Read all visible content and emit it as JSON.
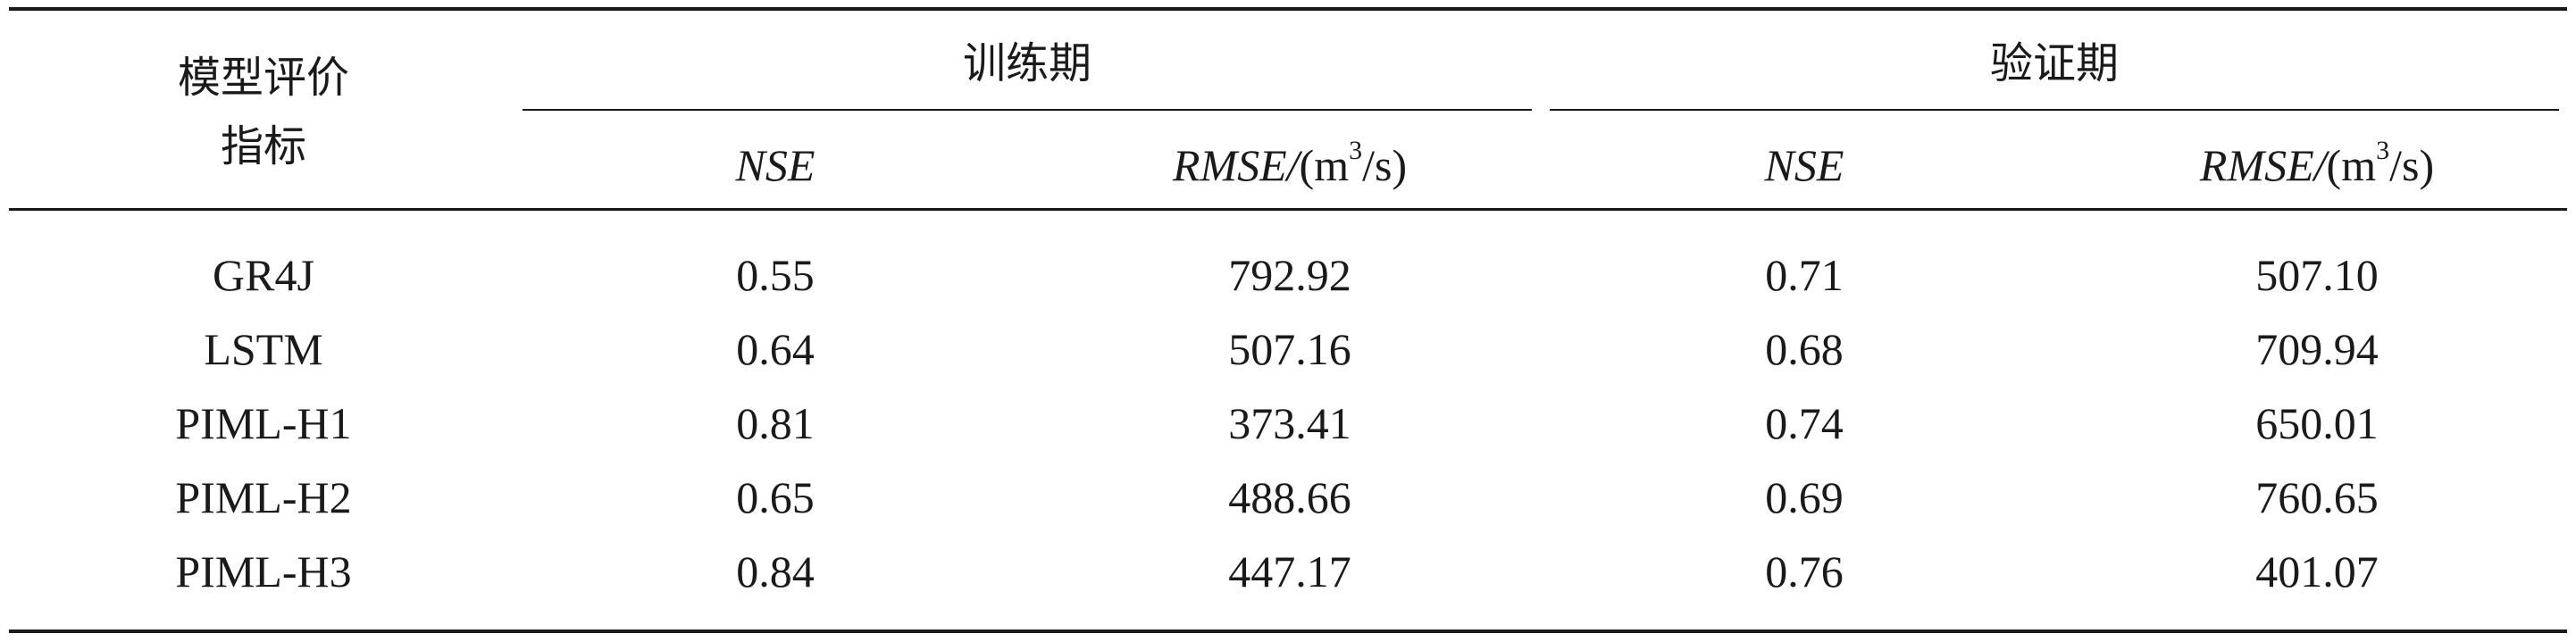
{
  "table": {
    "header": {
      "row_label_line1": "模型评价",
      "row_label_line2": "指标",
      "group_train": "训练期",
      "group_valid": "验证期",
      "nse_label": "NSE",
      "rmse_label": "RMSE/",
      "rmse_unit_open": "(m",
      "rmse_unit_exp": "3",
      "rmse_unit_close": "/s)"
    },
    "rows": [
      {
        "model": "GR4J",
        "train_nse": "0.55",
        "train_rmse": "792.92",
        "valid_nse": "0.71",
        "valid_rmse": "507.10"
      },
      {
        "model": "LSTM",
        "train_nse": "0.64",
        "train_rmse": "507.16",
        "valid_nse": "0.68",
        "valid_rmse": "709.94"
      },
      {
        "model": "PIML-H1",
        "train_nse": "0.81",
        "train_rmse": "373.41",
        "valid_nse": "0.74",
        "valid_rmse": "650.01"
      },
      {
        "model": "PIML-H2",
        "train_nse": "0.65",
        "train_rmse": "488.66",
        "valid_nse": "0.69",
        "valid_rmse": "760.65"
      },
      {
        "model": "PIML-H3",
        "train_nse": "0.84",
        "train_rmse": "447.17",
        "valid_nse": "0.76",
        "valid_rmse": "401.07"
      }
    ]
  }
}
